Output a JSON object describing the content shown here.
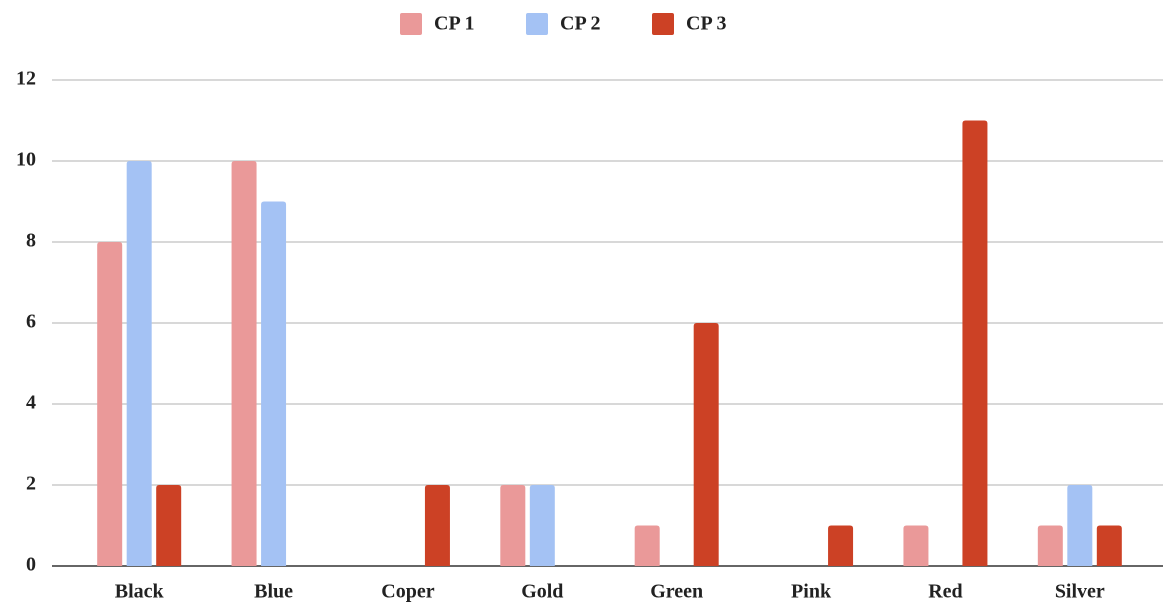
{
  "chart_data": {
    "type": "bar",
    "categories": [
      "Black",
      "Blue",
      "Coper",
      "Gold",
      "Green",
      "Pink",
      "Red",
      "Silver"
    ],
    "series": [
      {
        "name": "CP 1",
        "color": "#ea9999",
        "values": [
          8,
          10,
          0,
          2,
          1,
          0,
          1,
          1
        ]
      },
      {
        "name": "CP 2",
        "color": "#a4c2f4",
        "values": [
          10,
          9,
          0,
          2,
          0,
          0,
          0,
          2
        ]
      },
      {
        "name": "CP 3",
        "color": "#cc4125",
        "values": [
          2,
          0,
          2,
          0,
          6,
          1,
          11,
          1
        ]
      }
    ],
    "ylim": [
      0,
      12
    ],
    "yticks": [
      0,
      2,
      4,
      6,
      8,
      10,
      12
    ],
    "grid": true,
    "legend": "top"
  }
}
